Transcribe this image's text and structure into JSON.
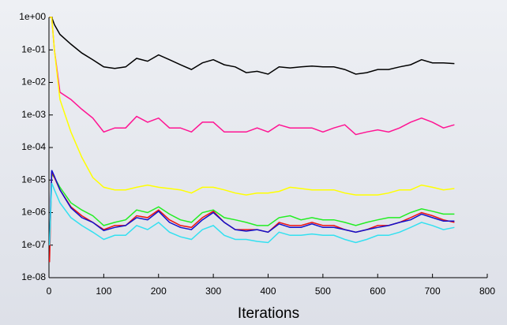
{
  "chart_data": {
    "type": "line",
    "xlabel": "Iterations",
    "log_y": true,
    "xlim": [
      0,
      800
    ],
    "xticks": [
      0,
      100,
      200,
      300,
      400,
      500,
      600,
      700,
      800
    ],
    "ylim": [
      1e-08,
      1
    ],
    "yticks": [
      {
        "value": 1e-08,
        "label": "1e-08"
      },
      {
        "value": 1e-07,
        "label": "1e-07"
      },
      {
        "value": 1e-06,
        "label": "1e-06"
      },
      {
        "value": 1e-05,
        "label": "1e-05"
      },
      {
        "value": 0.0001,
        "label": "1e-04"
      },
      {
        "value": 0.001,
        "label": "1e-03"
      },
      {
        "value": 0.01,
        "label": "1e-02"
      },
      {
        "value": 0.1,
        "label": "1e-01"
      },
      {
        "value": 1,
        "label": "1e+00"
      }
    ],
    "x": [
      1,
      5,
      10,
      20,
      40,
      60,
      80,
      100,
      120,
      140,
      160,
      180,
      200,
      220,
      240,
      260,
      280,
      300,
      320,
      340,
      360,
      380,
      400,
      420,
      440,
      460,
      480,
      500,
      520,
      540,
      560,
      580,
      600,
      620,
      640,
      660,
      680,
      700,
      720,
      740
    ],
    "series": [
      {
        "color": "#000000",
        "values": [
          1,
          1,
          0.6,
          0.3,
          0.15,
          0.08,
          0.05,
          0.03,
          0.027,
          0.03,
          0.055,
          0.045,
          0.07,
          0.05,
          0.035,
          0.025,
          0.04,
          0.05,
          0.035,
          0.03,
          0.02,
          0.022,
          0.018,
          0.03,
          0.028,
          0.03,
          0.032,
          0.03,
          0.03,
          0.025,
          0.018,
          0.02,
          0.025,
          0.025,
          0.03,
          0.035,
          0.05,
          0.04,
          0.04,
          0.038
        ]
      },
      {
        "color": "#ff1493",
        "values": [
          1,
          1,
          0.1,
          0.005,
          0.003,
          0.0015,
          0.0008,
          0.0003,
          0.0004,
          0.0004,
          0.0009,
          0.0006,
          0.0008,
          0.0004,
          0.0004,
          0.0003,
          0.0006,
          0.0006,
          0.0003,
          0.0003,
          0.0003,
          0.0004,
          0.0003,
          0.0005,
          0.0004,
          0.0004,
          0.0004,
          0.0003,
          0.0004,
          0.0005,
          0.00025,
          0.0003,
          0.00035,
          0.0003,
          0.0004,
          0.0006,
          0.0008,
          0.0006,
          0.0004,
          0.0005
        ]
      },
      {
        "color": "#ffff00",
        "values": [
          1,
          1,
          0.1,
          0.003,
          0.0003,
          5e-05,
          1.2e-05,
          6e-06,
          5e-06,
          5e-06,
          6e-06,
          7e-06,
          6e-06,
          5.5e-06,
          5e-06,
          4e-06,
          6e-06,
          6e-06,
          5e-06,
          4e-06,
          3.5e-06,
          4e-06,
          4e-06,
          4.5e-06,
          6e-06,
          5.5e-06,
          5e-06,
          5e-06,
          5e-06,
          4e-06,
          3.5e-06,
          3.5e-06,
          3.5e-06,
          4e-06,
          5e-06,
          5e-06,
          7e-06,
          6e-06,
          5e-06,
          5.5e-06
        ]
      },
      {
        "color": "#22ee22",
        "values": [
          1e-07,
          1.5e-05,
          1.2e-05,
          6e-06,
          2e-06,
          1.2e-06,
          8e-07,
          4e-07,
          5e-07,
          6e-07,
          1.2e-06,
          1e-06,
          1.5e-06,
          9e-07,
          6e-07,
          5e-07,
          1e-06,
          1.2e-06,
          7e-07,
          6e-07,
          5e-07,
          4e-07,
          4e-07,
          7e-07,
          8e-07,
          6e-07,
          7e-07,
          6e-07,
          6e-07,
          5e-07,
          4e-07,
          5e-07,
          6e-07,
          7e-07,
          7e-07,
          1e-06,
          1.3e-06,
          1.1e-06,
          9e-07,
          9e-07
        ]
      },
      {
        "color": "#ee1111",
        "values": [
          3e-08,
          1.8e-05,
          1.2e-05,
          5e-06,
          1.5e-06,
          8e-07,
          5e-07,
          3e-07,
          4e-07,
          4e-07,
          8e-07,
          7e-07,
          1.2e-06,
          6e-07,
          4e-07,
          3.5e-07,
          7e-07,
          1.1e-06,
          5e-07,
          3e-07,
          3e-07,
          3e-07,
          2.5e-07,
          5e-07,
          4e-07,
          4e-07,
          5e-07,
          4e-07,
          4e-07,
          3e-07,
          2.5e-07,
          3e-07,
          4e-07,
          4e-07,
          5e-07,
          7e-07,
          1e-06,
          8e-07,
          6e-07,
          5e-07
        ]
      },
      {
        "color": "#1111cc",
        "values": [
          1e-07,
          2e-05,
          1.3e-05,
          5e-06,
          1.4e-06,
          7e-07,
          5e-07,
          2.8e-07,
          3.5e-07,
          4e-07,
          7e-07,
          6e-07,
          1.1e-06,
          5e-07,
          3.5e-07,
          3e-07,
          6e-07,
          1e-06,
          5e-07,
          3e-07,
          2.7e-07,
          3e-07,
          2.5e-07,
          4.5e-07,
          3.5e-07,
          3.5e-07,
          4.5e-07,
          3.5e-07,
          3.5e-07,
          3e-07,
          2.5e-07,
          3e-07,
          3.5e-07,
          4e-07,
          5e-07,
          6e-07,
          9e-07,
          7e-07,
          5.5e-07,
          5.5e-07
        ]
      },
      {
        "color": "#33e0f0",
        "values": [
          1e-07,
          8e-06,
          5e-06,
          2e-06,
          7e-07,
          4e-07,
          2.5e-07,
          1.5e-07,
          2e-07,
          2e-07,
          4e-07,
          3e-07,
          5e-07,
          2.5e-07,
          1.8e-07,
          1.5e-07,
          3e-07,
          4e-07,
          2e-07,
          1.5e-07,
          1.5e-07,
          1.3e-07,
          1.2e-07,
          2.5e-07,
          2e-07,
          2e-07,
          2.2e-07,
          2e-07,
          2e-07,
          1.5e-07,
          1.2e-07,
          1.5e-07,
          2e-07,
          2e-07,
          2.5e-07,
          3.5e-07,
          5e-07,
          4e-07,
          3e-07,
          3.5e-07
        ]
      }
    ]
  }
}
